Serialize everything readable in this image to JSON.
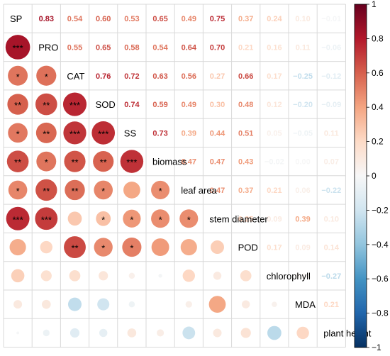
{
  "chart_data": {
    "type": "heatmap",
    "variables": [
      "SP",
      "PRO",
      "CAT",
      "SOD",
      "SS",
      "biomass",
      "leaf area",
      "stem diameter",
      "POD",
      "chlorophyll",
      "MDA",
      "plant height"
    ],
    "upper_values": [
      [
        null,
        0.83,
        0.54,
        0.6,
        0.53,
        0.65,
        0.49,
        0.75,
        0.37,
        0.24,
        0.1,
        -0.01
      ],
      [
        null,
        null,
        0.55,
        0.65,
        0.58,
        0.54,
        0.64,
        0.7,
        0.21,
        0.16,
        0.11,
        -0.06
      ],
      [
        null,
        null,
        null,
        0.76,
        0.72,
        0.63,
        0.56,
        0.27,
        0.66,
        0.17,
        -0.25,
        -0.12
      ],
      [
        null,
        null,
        null,
        null,
        0.74,
        0.59,
        0.49,
        0.3,
        0.48,
        0.12,
        -0.2,
        -0.09
      ],
      [
        null,
        null,
        null,
        null,
        null,
        0.73,
        0.39,
        0.44,
        0.51,
        0.05,
        -0.05,
        0.11
      ],
      [
        null,
        null,
        null,
        null,
        null,
        null,
        0.47,
        0.47,
        0.43,
        -0.02,
        0.0,
        0.07
      ],
      [
        null,
        null,
        null,
        null,
        null,
        null,
        null,
        0.47,
        0.37,
        0.21,
        0.06,
        -0.22
      ],
      [
        null,
        null,
        null,
        null,
        null,
        null,
        null,
        null,
        0.25,
        0.09,
        0.39,
        0.1
      ],
      [
        null,
        null,
        null,
        null,
        null,
        null,
        null,
        null,
        null,
        0.17,
        0.09,
        0.14
      ],
      [
        null,
        null,
        null,
        null,
        null,
        null,
        null,
        null,
        null,
        null,
        0.04,
        -0.27
      ],
      [
        null,
        null,
        null,
        null,
        null,
        null,
        null,
        null,
        null,
        null,
        null,
        0.21
      ],
      [
        null,
        null,
        null,
        null,
        null,
        null,
        null,
        null,
        null,
        null,
        null,
        null
      ]
    ],
    "value_labels": [
      [
        null,
        "0.83",
        "0.54",
        "0.60",
        "0.53",
        "0.65",
        "0.49",
        "0.75",
        "0.37",
        "0.24",
        "0.10",
        "−0.01"
      ],
      [
        null,
        null,
        "0.55",
        "0.65",
        "0.58",
        "0.54",
        "0.64",
        "0.70",
        "0.21",
        "0.16",
        "0.11",
        "−0.06"
      ],
      [
        null,
        null,
        null,
        "0.76",
        "0.72",
        "0.63",
        "0.56",
        "0.27",
        "0.66",
        "0.17",
        "−0.25",
        "−0.12"
      ],
      [
        null,
        null,
        null,
        null,
        "0.74",
        "0.59",
        "0.49",
        "0.30",
        "0.48",
        "0.12",
        "−0.20",
        "−0.09"
      ],
      [
        null,
        null,
        null,
        null,
        null,
        "0.73",
        "0.39",
        "0.44",
        "0.51",
        "0.05",
        "−0.05",
        "0.11"
      ],
      [
        null,
        null,
        null,
        null,
        null,
        null,
        "0.47",
        "0.47",
        "0.43",
        "−0.02",
        "0.00",
        "0.07"
      ],
      [
        null,
        null,
        null,
        null,
        null,
        null,
        null,
        "0.47",
        "0.37",
        "0.21",
        "0.06",
        "−0.22"
      ],
      [
        null,
        null,
        null,
        null,
        null,
        null,
        null,
        null,
        "0.25",
        "0.09",
        "0.39",
        "0.10"
      ],
      [
        null,
        null,
        null,
        null,
        null,
        null,
        null,
        null,
        null,
        "0.17",
        "0.09",
        "0.14"
      ],
      [
        null,
        null,
        null,
        null,
        null,
        null,
        null,
        null,
        null,
        null,
        "0.04",
        "−0.27"
      ],
      [
        null,
        null,
        null,
        null,
        null,
        null,
        null,
        null,
        null,
        null,
        null,
        "0.21"
      ],
      [
        null,
        null,
        null,
        null,
        null,
        null,
        null,
        null,
        null,
        null,
        null,
        null
      ]
    ],
    "significance": [
      [
        null,
        null,
        null,
        null,
        null,
        null,
        null,
        null,
        null,
        null,
        null,
        null
      ],
      [
        "***",
        null,
        null,
        null,
        null,
        null,
        null,
        null,
        null,
        null,
        null,
        null
      ],
      [
        "*",
        "*",
        null,
        null,
        null,
        null,
        null,
        null,
        null,
        null,
        null,
        null
      ],
      [
        "**",
        "**",
        "***",
        null,
        null,
        null,
        null,
        null,
        null,
        null,
        null,
        null
      ],
      [
        "*",
        "**",
        "***",
        "***",
        null,
        null,
        null,
        null,
        null,
        null,
        null,
        null
      ],
      [
        "**",
        "*",
        "**",
        "**",
        "***",
        null,
        null,
        null,
        null,
        null,
        null,
        null
      ],
      [
        "*",
        "**",
        "**",
        "*",
        "",
        "*",
        null,
        null,
        null,
        null,
        null,
        null
      ],
      [
        "***",
        "***",
        "",
        "*",
        "*",
        "*",
        "*",
        null,
        null,
        null,
        null,
        null
      ],
      [
        "",
        "",
        "**",
        "*",
        "*",
        "",
        "",
        "",
        null,
        null,
        null,
        null
      ],
      [
        "",
        "",
        "",
        "",
        "",
        "",
        "",
        "",
        "",
        null,
        null,
        null
      ],
      [
        "",
        "",
        "",
        "",
        "",
        "",
        "",
        "",
        "",
        "",
        null,
        null
      ],
      [
        "",
        "",
        "",
        "",
        "",
        "",
        "",
        "",
        "",
        "",
        "",
        null
      ]
    ],
    "diagonal_labels": [
      "SP",
      "PRO",
      "CAT",
      "SOD",
      "SS",
      "biomass",
      "leaf area",
      "stem diameter",
      "POD",
      "chlorophyll",
      "MDA",
      "plant height"
    ],
    "colorbar": {
      "range": [
        -1,
        1
      ],
      "ticks": [
        -1,
        -0.8,
        -0.6,
        -0.4,
        -0.2,
        0,
        0.2,
        0.4,
        0.6,
        0.8,
        1
      ],
      "tick_labels": [
        "−1",
        "−0.8",
        "−0.6",
        "−0.4",
        "−0.2",
        "0",
        "0.2",
        "0.4",
        "0.6",
        "0.8",
        "1"
      ]
    },
    "lower_glyph": "circle",
    "upper_glyph": "number",
    "grid": true,
    "legend_position": "right"
  }
}
